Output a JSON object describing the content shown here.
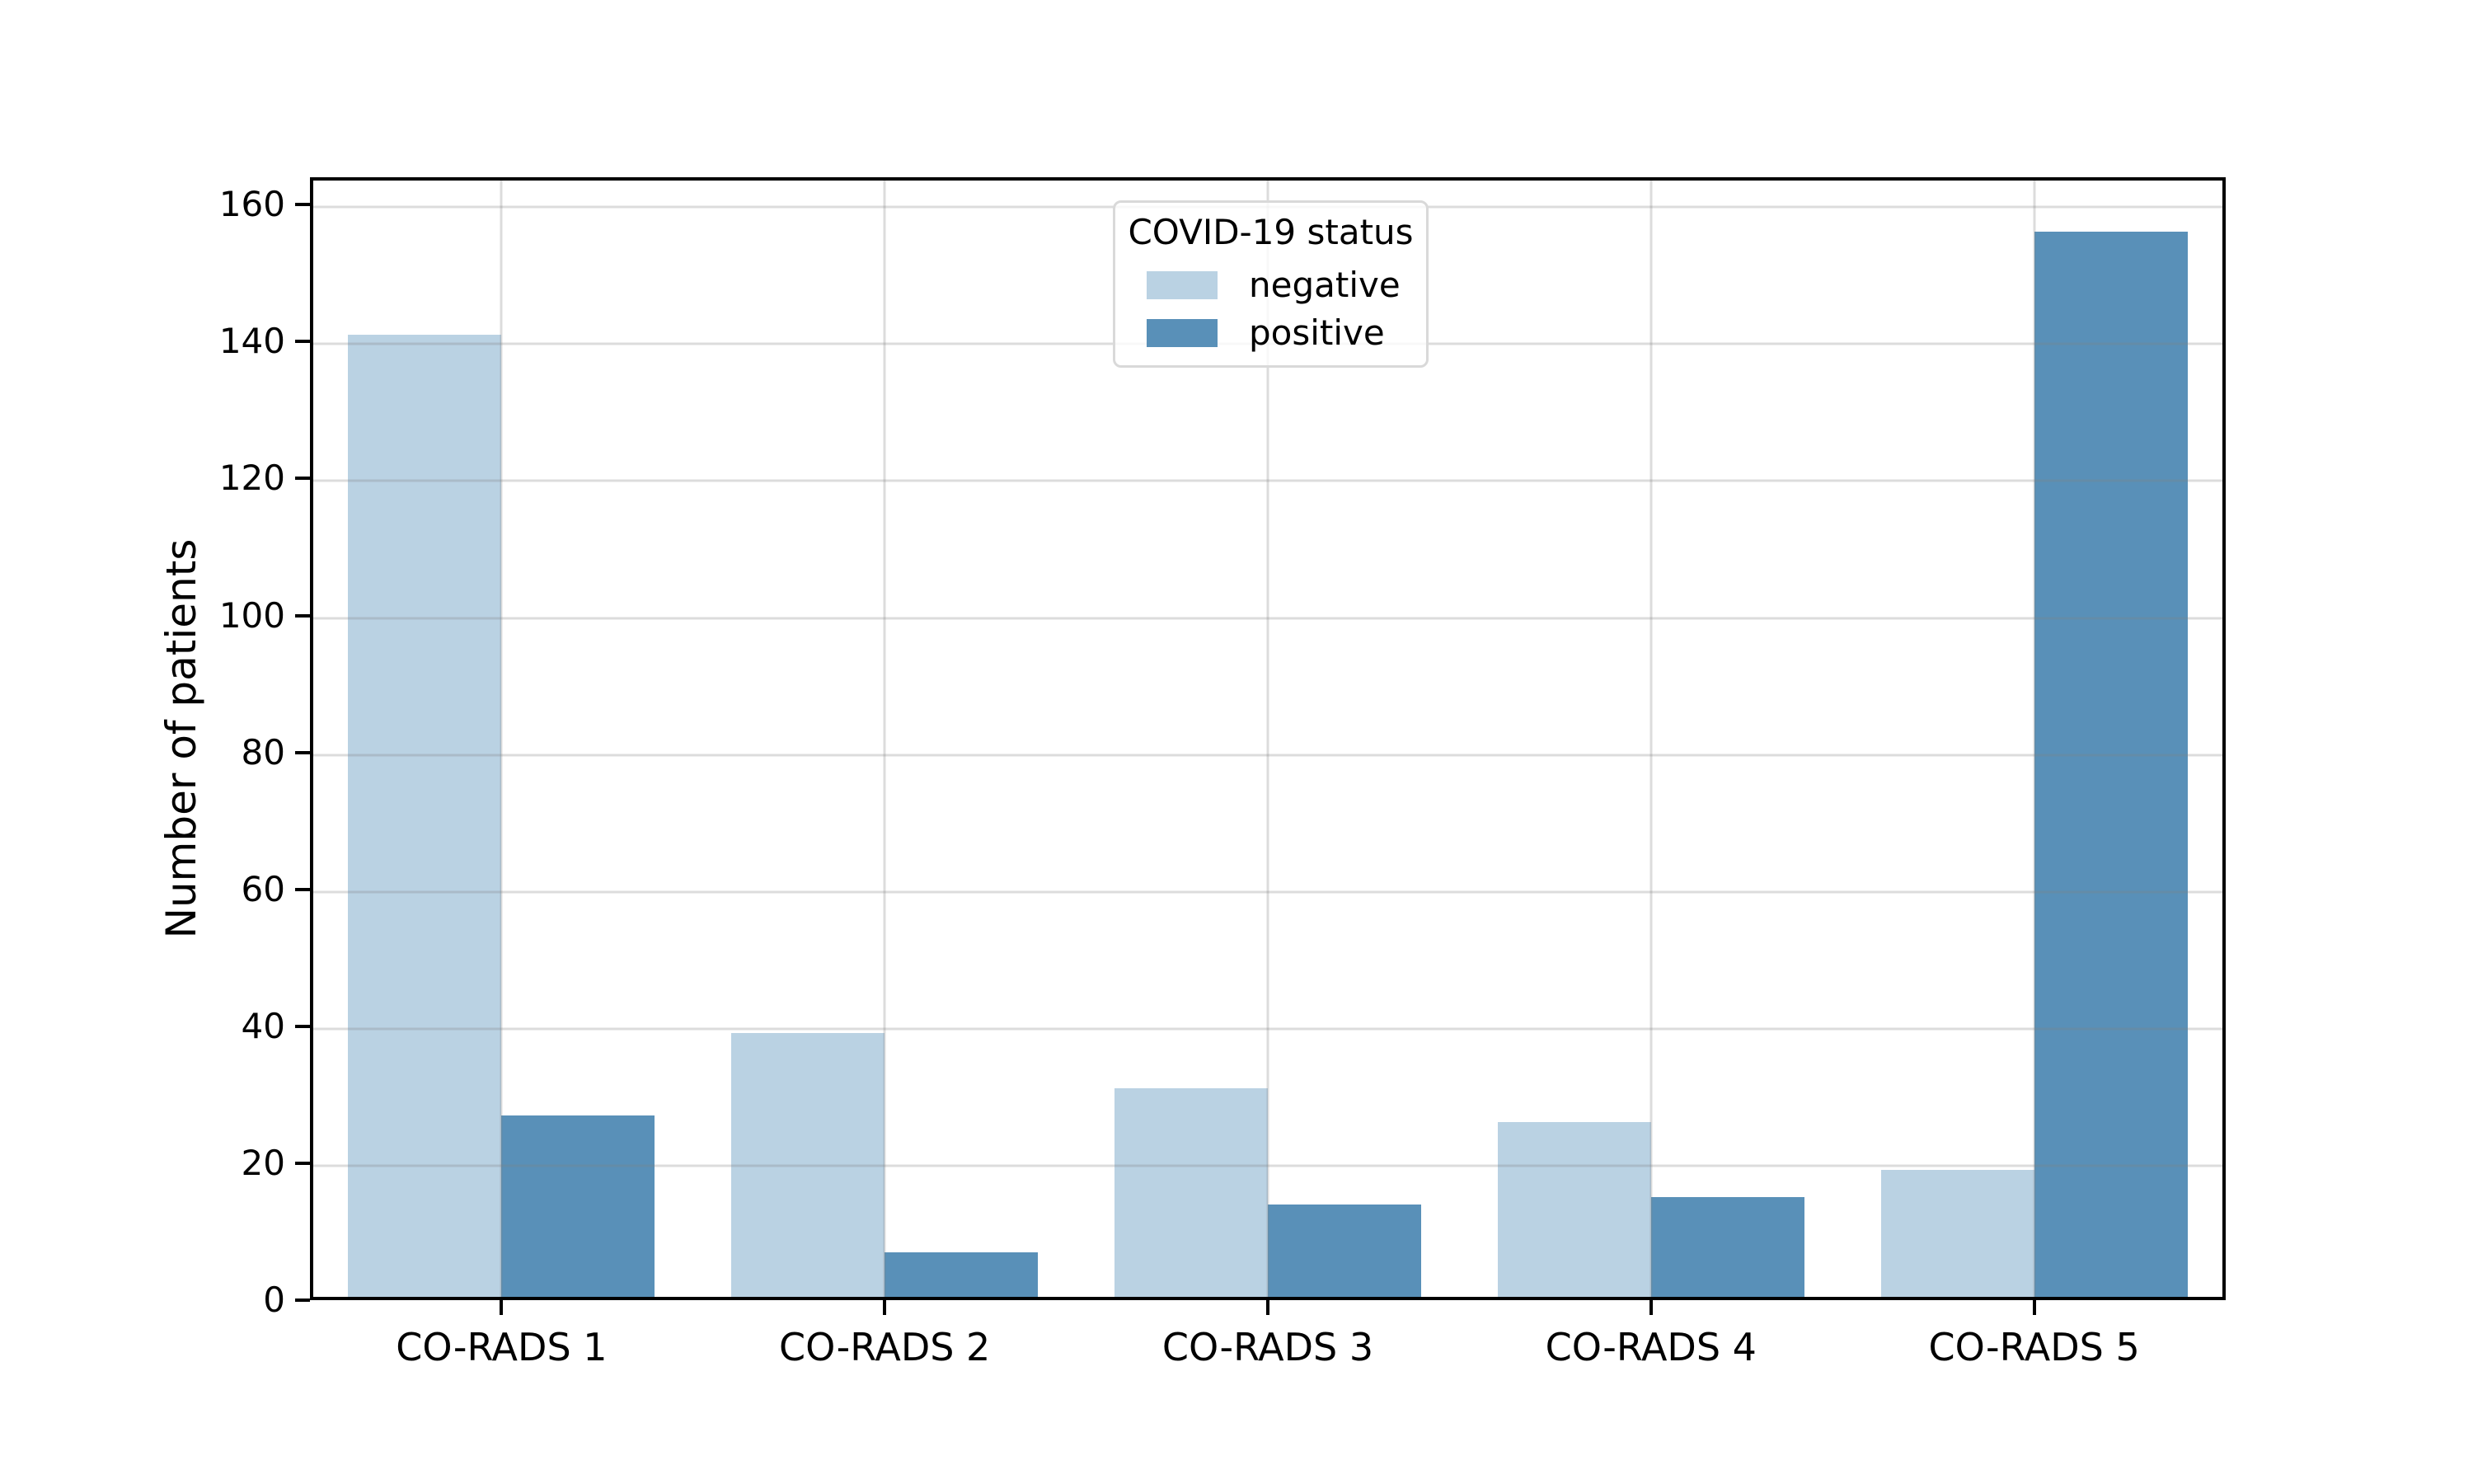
{
  "chart_data": {
    "type": "bar",
    "title": "",
    "xlabel": "",
    "ylabel": "Number of patients",
    "categories": [
      "CO-RADS 1",
      "CO-RADS 2",
      "CO-RADS 3",
      "CO-RADS 4",
      "CO-RADS 5"
    ],
    "series": [
      {
        "name": "negative",
        "color": "#bad2e3",
        "values": [
          141,
          39,
          31,
          26,
          19
        ]
      },
      {
        "name": "positive",
        "color": "#5990b8",
        "values": [
          27,
          7,
          14,
          15,
          156
        ]
      }
    ],
    "ylim": [
      0,
      164
    ],
    "yticks": [
      0,
      20,
      40,
      60,
      80,
      100,
      120,
      140,
      160
    ],
    "grid": true,
    "bar_width_fraction": 0.08,
    "legend": {
      "title": "COVID-19 status",
      "position": "upper center-left"
    }
  },
  "colors": {
    "spine": "#000000",
    "grid": "#c8c8c8",
    "legend_border": "#d9d9d9",
    "background": "#ffffff",
    "text": "#000000"
  }
}
